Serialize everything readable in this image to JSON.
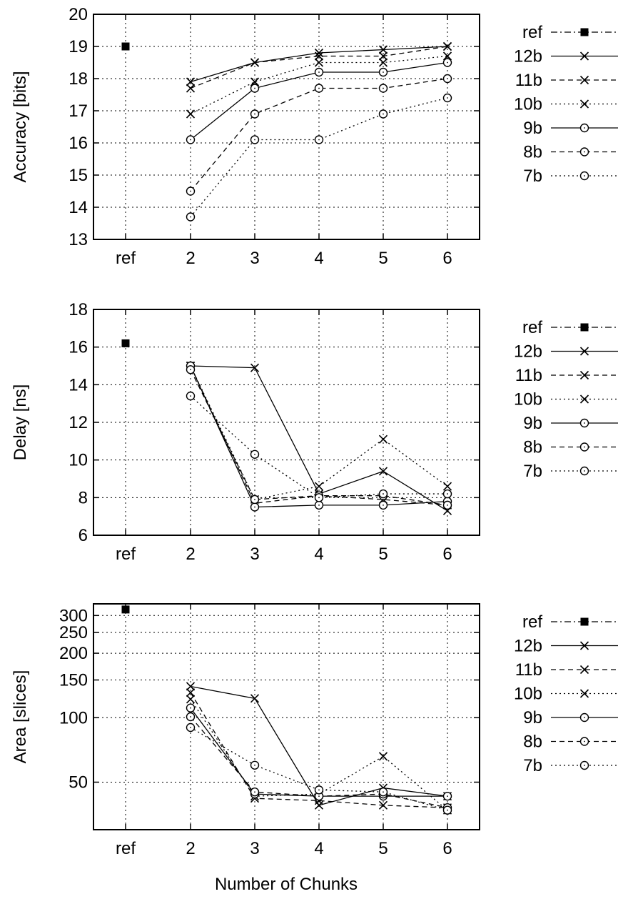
{
  "chart_data": [
    {
      "type": "line",
      "title": "",
      "xlabel": "",
      "ylabel": "Accuracy [bits]",
      "categories": [
        "ref",
        "2",
        "3",
        "4",
        "5",
        "6"
      ],
      "yscale": "linear",
      "ylim": [
        13,
        20
      ],
      "yticks": [
        13,
        14,
        15,
        16,
        17,
        18,
        19,
        20
      ],
      "grid": true,
      "legend_position": "right",
      "series": [
        {
          "name": "ref",
          "marker": "filled-square",
          "dash": "dashdot",
          "values": [
            19.0,
            null,
            null,
            null,
            null,
            null
          ]
        },
        {
          "name": "12b",
          "marker": "cross",
          "dash": "solid",
          "values": [
            null,
            17.9,
            18.5,
            18.8,
            18.9,
            19.0
          ]
        },
        {
          "name": "11b",
          "marker": "cross",
          "dash": "dashed",
          "values": [
            null,
            17.7,
            18.5,
            18.7,
            18.7,
            19.0
          ]
        },
        {
          "name": "10b",
          "marker": "cross",
          "dash": "dotted",
          "values": [
            null,
            16.9,
            17.9,
            18.5,
            18.5,
            18.7
          ]
        },
        {
          "name": "9b",
          "marker": "circle",
          "dash": "solid",
          "values": [
            null,
            16.1,
            17.7,
            18.2,
            18.2,
            18.5
          ]
        },
        {
          "name": "8b",
          "marker": "circle",
          "dash": "dashed",
          "values": [
            null,
            14.5,
            16.9,
            17.7,
            17.7,
            18.0
          ]
        },
        {
          "name": "7b",
          "marker": "circle",
          "dash": "dotted",
          "values": [
            null,
            13.7,
            16.1,
            16.1,
            16.9,
            17.4
          ]
        }
      ]
    },
    {
      "type": "line",
      "title": "",
      "xlabel": "",
      "ylabel": "Delay [ns]",
      "categories": [
        "ref",
        "2",
        "3",
        "4",
        "5",
        "6"
      ],
      "yscale": "linear",
      "ylim": [
        6,
        18
      ],
      "yticks": [
        6,
        8,
        10,
        12,
        14,
        16,
        18
      ],
      "grid": true,
      "legend_position": "right",
      "series": [
        {
          "name": "ref",
          "marker": "filled-square",
          "dash": "dashdot",
          "values": [
            16.2,
            null,
            null,
            null,
            null,
            null
          ]
        },
        {
          "name": "12b",
          "marker": "cross",
          "dash": "solid",
          "values": [
            null,
            15.0,
            14.9,
            8.2,
            9.4,
            7.3
          ]
        },
        {
          "name": "11b",
          "marker": "cross",
          "dash": "dashed",
          "values": [
            null,
            15.0,
            7.7,
            8.1,
            7.9,
            7.6
          ]
        },
        {
          "name": "10b",
          "marker": "cross",
          "dash": "dotted",
          "values": [
            null,
            15.0,
            7.9,
            8.6,
            11.1,
            8.6
          ]
        },
        {
          "name": "9b",
          "marker": "circle",
          "dash": "solid",
          "values": [
            null,
            15.0,
            7.5,
            7.6,
            7.6,
            7.8
          ]
        },
        {
          "name": "8b",
          "marker": "circle",
          "dash": "dashed",
          "values": [
            null,
            14.8,
            7.9,
            8.1,
            8.1,
            7.6
          ]
        },
        {
          "name": "7b",
          "marker": "circle",
          "dash": "dotted",
          "values": [
            null,
            13.4,
            10.3,
            8.0,
            8.2,
            8.2
          ]
        }
      ]
    },
    {
      "type": "line",
      "title": "",
      "xlabel": "Number of Chunks",
      "ylabel": "Area [slices]",
      "categories": [
        "ref",
        "2",
        "3",
        "4",
        "5",
        "6"
      ],
      "yscale": "log",
      "ylim": [
        30,
        340
      ],
      "yticks": [
        50,
        100,
        150,
        200,
        250,
        300
      ],
      "grid": true,
      "legend_position": "right",
      "series": [
        {
          "name": "ref",
          "marker": "filled-square",
          "dash": "dashdot",
          "values": [
            320,
            null,
            null,
            null,
            null,
            null
          ]
        },
        {
          "name": "12b",
          "marker": "cross",
          "dash": "solid",
          "values": [
            null,
            140,
            123,
            39,
            47,
            43
          ]
        },
        {
          "name": "11b",
          "marker": "cross",
          "dash": "dashed",
          "values": [
            null,
            131,
            42,
            41,
            39,
            38
          ]
        },
        {
          "name": "10b",
          "marker": "cross",
          "dash": "dotted",
          "values": [
            null,
            122,
            43,
            44,
            66,
            37
          ]
        },
        {
          "name": "9b",
          "marker": "circle",
          "dash": "solid",
          "values": [
            null,
            111,
            44,
            43,
            43,
            43
          ]
        },
        {
          "name": "8b",
          "marker": "circle",
          "dash": "dashed",
          "values": [
            null,
            101,
            45,
            43,
            44,
            38
          ]
        },
        {
          "name": "7b",
          "marker": "circle",
          "dash": "dotted",
          "values": [
            null,
            90,
            60,
            46,
            45,
            37
          ]
        }
      ]
    }
  ]
}
